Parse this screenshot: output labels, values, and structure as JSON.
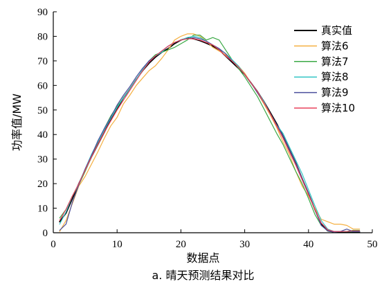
{
  "chart_data": {
    "type": "line",
    "title": "",
    "caption": "a. 晴天预测结果对比",
    "xlabel": "数据点",
    "ylabel": "功率值/MW",
    "xlim": [
      0,
      50
    ],
    "ylim": [
      0,
      90
    ],
    "xticks": [
      0,
      10,
      20,
      30,
      40,
      50
    ],
    "yticks": [
      0,
      10,
      20,
      30,
      40,
      50,
      60,
      70,
      80,
      90
    ],
    "grid": false,
    "legend_position": "top-right",
    "x": [
      1,
      2,
      3,
      4,
      5,
      6,
      7,
      8,
      9,
      10,
      11,
      12,
      13,
      14,
      15,
      16,
      17,
      18,
      19,
      20,
      21,
      22,
      23,
      24,
      25,
      26,
      27,
      28,
      29,
      30,
      31,
      32,
      33,
      34,
      35,
      36,
      37,
      38,
      39,
      40,
      41,
      42,
      43,
      44,
      45,
      46,
      47,
      48
    ],
    "series": [
      {
        "name": "真实值",
        "color": "#000000",
        "width": 1.8,
        "values": [
          4.5,
          8,
          14,
          20,
          25.5,
          31,
          36,
          41,
          46,
          50.5,
          55,
          58.5,
          62.5,
          66,
          69,
          71.5,
          73.5,
          75,
          77,
          78.5,
          79.3,
          79,
          78.2,
          77.2,
          76,
          74.5,
          72,
          69.5,
          67,
          64.5,
          61,
          57.5,
          53.5,
          49,
          44.5,
          39.5,
          34,
          28.5,
          22,
          16,
          9.5,
          3.5,
          0.8,
          0.3,
          0.3,
          0.3,
          0.3,
          0.3
        ]
      },
      {
        "name": "算法6",
        "color": "#f5b041",
        "width": 1.2,
        "values": [
          0.5,
          5,
          12,
          19,
          23,
          28,
          33,
          38.5,
          43.5,
          47,
          52.5,
          56,
          60,
          63,
          66,
          68,
          71,
          74.5,
          78.5,
          80,
          81,
          81,
          80,
          78,
          75.5,
          74,
          72.5,
          70,
          68,
          65,
          61,
          57,
          52.5,
          48,
          43,
          37,
          32,
          25,
          19,
          15,
          10,
          5.5,
          4.5,
          3.5,
          3.5,
          3,
          1.5,
          1.5
        ]
      },
      {
        "name": "算法7",
        "color": "#3aa845",
        "width": 1.2,
        "values": [
          6,
          9.5,
          15,
          19.5,
          25,
          31,
          37,
          42.5,
          47.5,
          51.5,
          55,
          58.5,
          62.5,
          66,
          70,
          72.5,
          73.5,
          74.5,
          75.5,
          77,
          78.5,
          80.5,
          80.5,
          78.5,
          79.5,
          78.5,
          74.5,
          70.5,
          67,
          63.5,
          59.5,
          55.5,
          50.5,
          45.5,
          40.5,
          36,
          30.5,
          25,
          20,
          14,
          7.5,
          3,
          0.8,
          0.5,
          0.5,
          0.5,
          1,
          1
        ]
      },
      {
        "name": "算法8",
        "color": "#34c6c6",
        "width": 1.2,
        "values": [
          3.5,
          8.5,
          15,
          20,
          26,
          32,
          37,
          42,
          46.5,
          51,
          55,
          58.5,
          62.5,
          66.5,
          70,
          72,
          73.5,
          76,
          77.5,
          78.5,
          79.5,
          80,
          79.5,
          78,
          76.5,
          75,
          73,
          70.5,
          68,
          64.5,
          61,
          57.5,
          53.5,
          48.5,
          44,
          40.5,
          35,
          29.5,
          24,
          17.5,
          11,
          5,
          1.5,
          0.5,
          0.5,
          0.5,
          0.5,
          0.5
        ]
      },
      {
        "name": "算法9",
        "color": "#4a4e9c",
        "width": 1.2,
        "values": [
          1,
          3.5,
          12.5,
          19.5,
          26,
          31.5,
          37.5,
          42.5,
          47,
          52,
          56,
          59.5,
          63.5,
          67,
          70,
          72,
          74,
          76,
          77.5,
          78.5,
          79,
          79.5,
          79,
          78,
          76.5,
          75,
          73,
          70,
          67.5,
          64.5,
          61,
          57,
          53,
          48.5,
          44,
          39.5,
          34,
          28.5,
          22,
          16,
          9.5,
          3,
          0.8,
          0.3,
          0.5,
          1.5,
          0.5,
          0.5
        ]
      },
      {
        "name": "算法10",
        "color": "#e8405c",
        "width": 1.2,
        "values": [
          5,
          9.5,
          15,
          20,
          25.5,
          31,
          36,
          41,
          45.5,
          50,
          54,
          58,
          62,
          66,
          69.5,
          72,
          74,
          76,
          77.5,
          78.5,
          79,
          79,
          78.5,
          77.5,
          76.5,
          74.5,
          72,
          70,
          67.5,
          64.5,
          61,
          57.5,
          53,
          48.5,
          43.5,
          38.5,
          33,
          27.5,
          21.5,
          15.5,
          9.5,
          4,
          1.2,
          0.5,
          0.5,
          0.5,
          0.8,
          0.8
        ]
      }
    ]
  }
}
